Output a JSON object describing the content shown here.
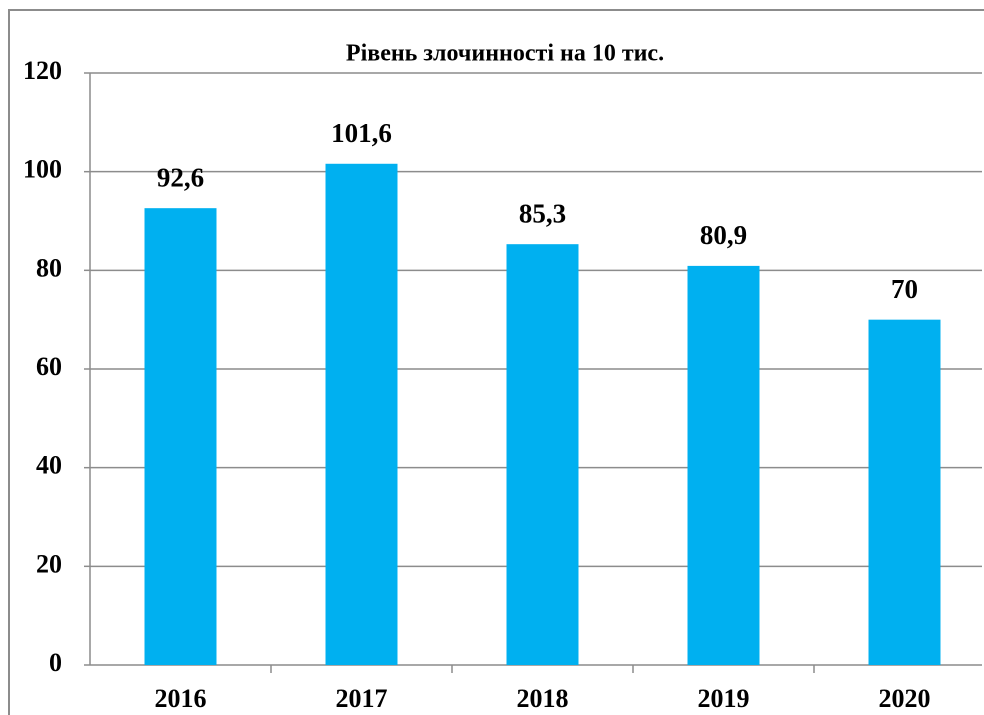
{
  "chart_data": {
    "type": "bar",
    "title": "Рівень злочинності на 10 тис.",
    "categories": [
      "2016",
      "2017",
      "2018",
      "2019",
      "2020"
    ],
    "values": [
      92.6,
      101.6,
      85.3,
      80.9,
      70
    ],
    "value_labels": [
      "92,6",
      "101,6",
      "85,3",
      "80,9",
      "70"
    ],
    "color": "#00b0f0",
    "ylim": [
      0,
      120
    ],
    "yticks": [
      0,
      20,
      40,
      60,
      80,
      100,
      120
    ],
    "grid": true
  }
}
